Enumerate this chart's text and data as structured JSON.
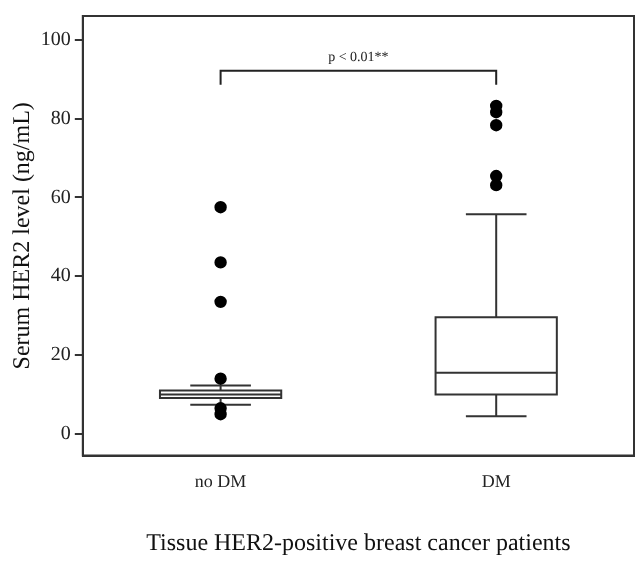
{
  "chart_data": {
    "type": "box",
    "xlabel": "Tissue HER2-positive breast cancer patients",
    "ylabel": "Serum HER2 level (ng/mL)",
    "categories": [
      "no DM",
      "DM"
    ],
    "boxes": [
      {
        "low": 7.4,
        "q1": 9.1,
        "median": 10,
        "q3": 11,
        "high": 12.3,
        "outliers": [
          57.5,
          43.5,
          33.5,
          14,
          6.5,
          5
        ]
      },
      {
        "low": 4.5,
        "q1": 10,
        "median": 15.5,
        "q3": 29.6,
        "high": 55.7,
        "outliers": [
          83.2,
          81.6,
          78.3,
          65.4,
          63.1
        ]
      }
    ],
    "ylim": [
      -5.5,
      106
    ],
    "yticks": [
      0,
      20,
      40,
      60,
      80,
      100
    ],
    "annotations": [
      "p < 0.01**"
    ]
  }
}
